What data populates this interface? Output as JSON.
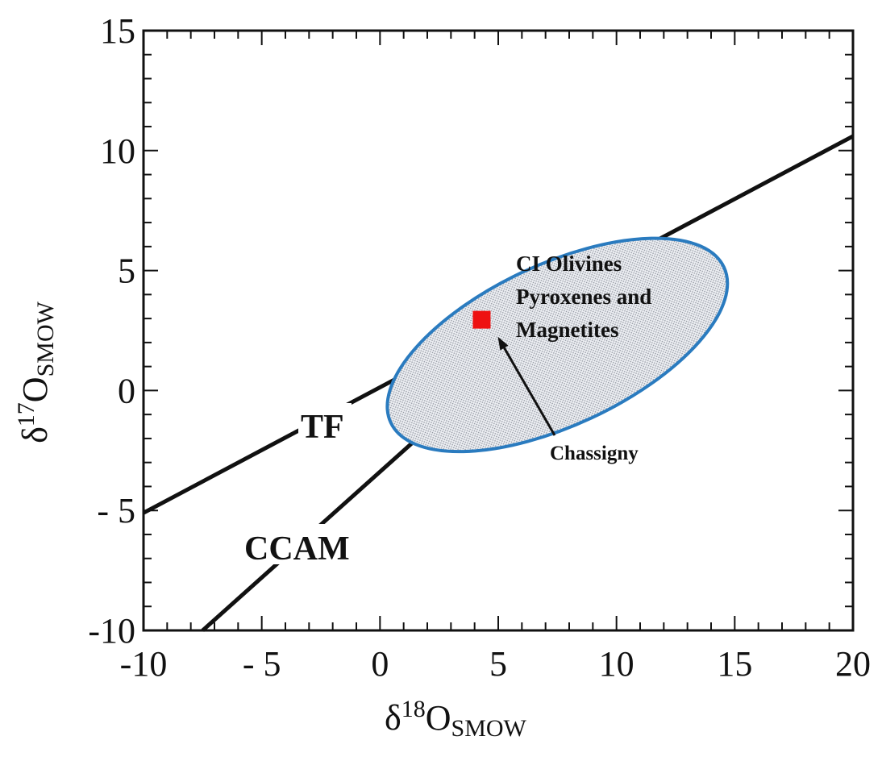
{
  "chart_data": {
    "type": "scatter",
    "title": "",
    "xlabel": {
      "delta": "δ",
      "sup": "18",
      "main": "O",
      "sub": "SMOW"
    },
    "ylabel": {
      "delta": "δ",
      "sup": "17",
      "main": "O",
      "sub": "SMOW"
    },
    "xlim": [
      -10,
      20
    ],
    "ylim": [
      -10,
      15
    ],
    "xticks": [
      -10,
      -5,
      0,
      5,
      10,
      15,
      20
    ],
    "xtick_labels": [
      "-10",
      "- 5",
      "0",
      "5",
      "10",
      "15",
      "20"
    ],
    "yticks": [
      -10,
      -5,
      0,
      5,
      10,
      15
    ],
    "ytick_labels": [
      "-10",
      "- 5",
      "0",
      "5",
      "10",
      "15"
    ],
    "minor_tick_step": 1,
    "grid": false,
    "lines": [
      {
        "name": "TF",
        "x": [
          -10,
          20
        ],
        "y": [
          -5.1,
          10.6
        ]
      },
      {
        "name": "CCAM",
        "x": [
          -7.5,
          1.8
        ],
        "y": [
          -10,
          -1.8
        ]
      }
    ],
    "region": {
      "label_lines": [
        "CI Olivines",
        "Pyroxenes and",
        "Magnetites"
      ],
      "center": [
        7.5,
        1.9
      ],
      "edge_color": "#2a7bbf",
      "fill_color": "#dfe3ea"
    },
    "points": [
      {
        "name": "Chassigny",
        "x": 4.3,
        "y": 2.95,
        "color": "#ee1111",
        "marker": "square"
      }
    ],
    "annotations": {
      "tf_label": "TF",
      "ccam_label": "CCAM",
      "chassigny_label": "Chassigny"
    }
  }
}
